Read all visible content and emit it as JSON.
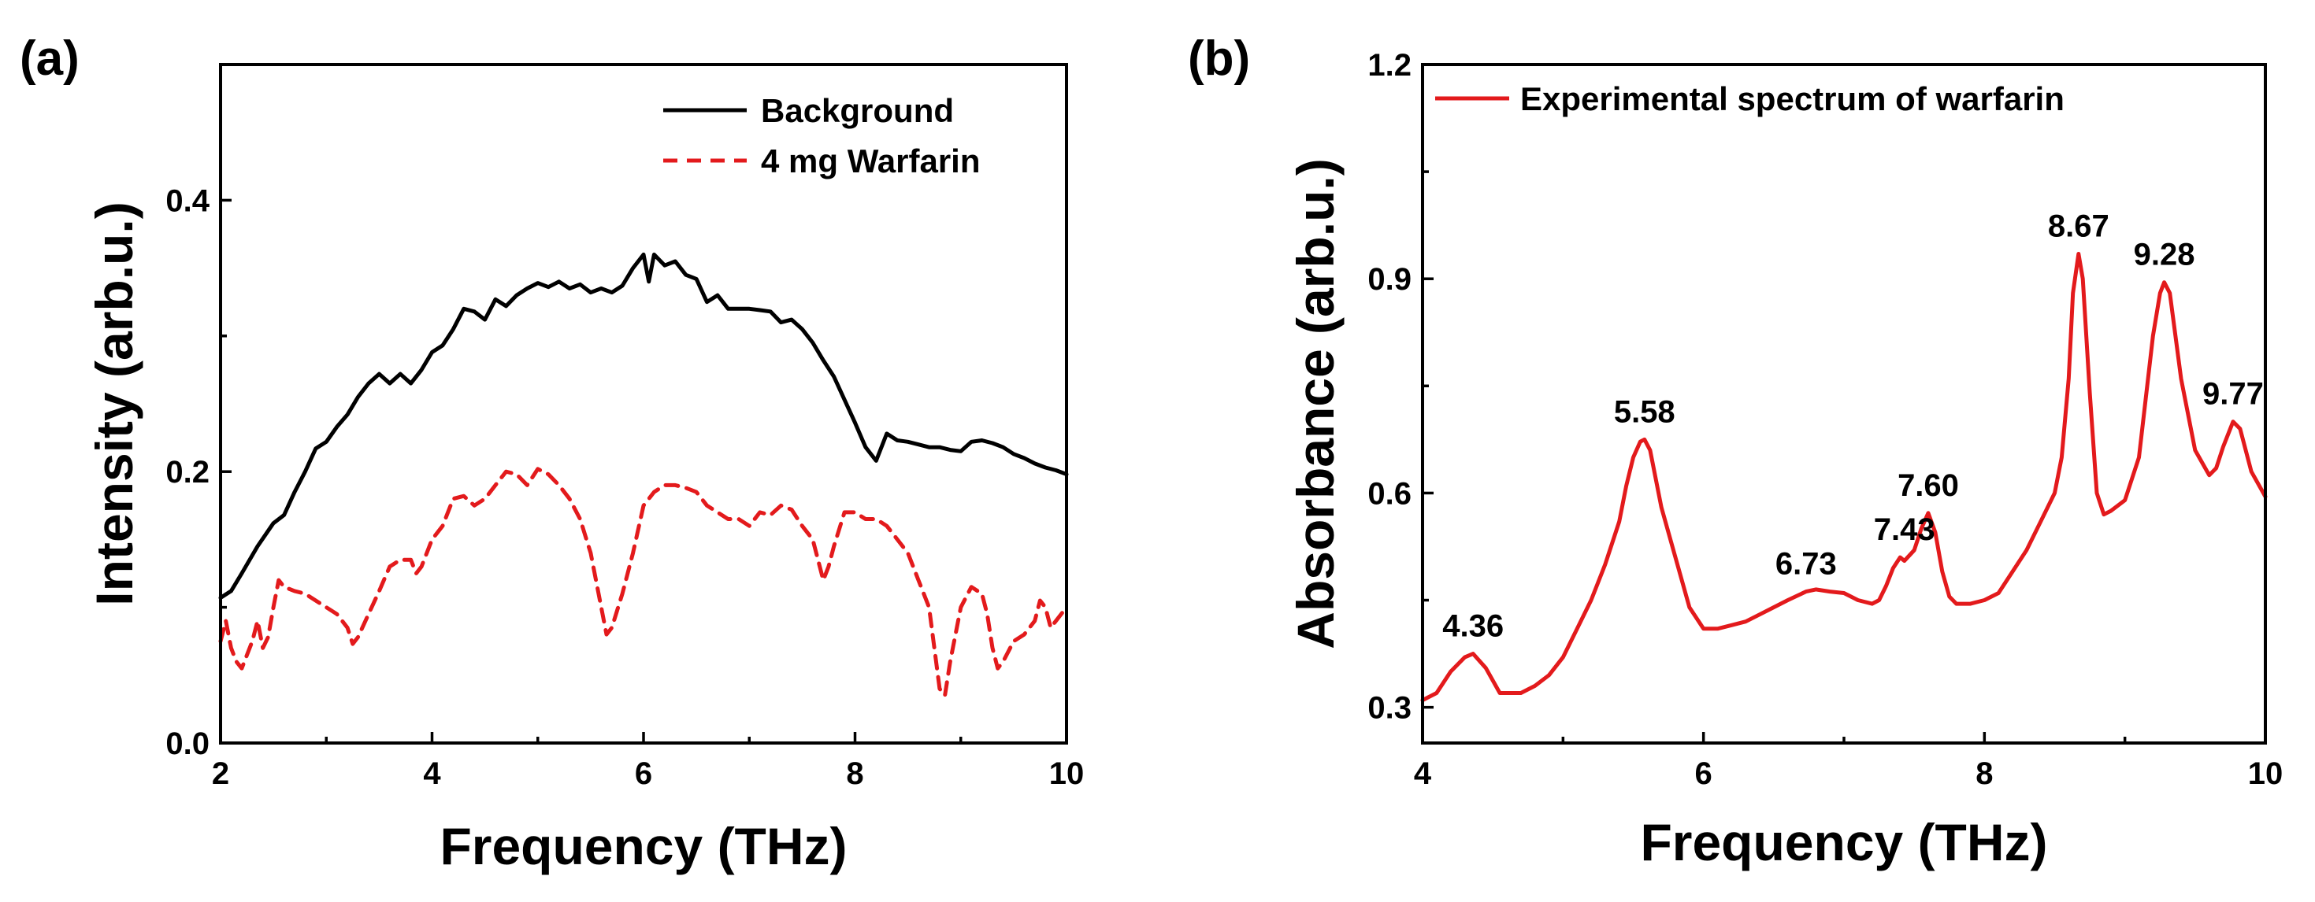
{
  "chart_data": [
    {
      "panel_label": "(a)",
      "type": "line",
      "title": "",
      "xlabel": "Frequency (THz)",
      "ylabel": "Intensity (arb.u.)",
      "xlim": [
        2,
        10
      ],
      "ylim": [
        0.0,
        0.5
      ],
      "xticks": [
        "2",
        "4",
        "6",
        "8",
        "10"
      ],
      "yticks": [
        "0.0",
        "0.2",
        "0.4"
      ],
      "legend_position": "top-right",
      "series": [
        {
          "name": "Background",
          "color": "#000000",
          "style": "solid",
          "x": [
            2.0,
            2.1,
            2.2,
            2.35,
            2.5,
            2.6,
            2.7,
            2.8,
            2.9,
            3.0,
            3.1,
            3.2,
            3.3,
            3.4,
            3.5,
            3.6,
            3.7,
            3.8,
            3.9,
            4.0,
            4.1,
            4.2,
            4.3,
            4.4,
            4.5,
            4.6,
            4.7,
            4.8,
            4.9,
            5.0,
            5.1,
            5.2,
            5.3,
            5.4,
            5.5,
            5.6,
            5.7,
            5.8,
            5.9,
            6.0,
            6.05,
            6.1,
            6.2,
            6.3,
            6.4,
            6.5,
            6.6,
            6.7,
            6.8,
            6.9,
            7.0,
            7.1,
            7.2,
            7.3,
            7.4,
            7.5,
            7.6,
            7.7,
            7.8,
            7.9,
            8.0,
            8.1,
            8.2,
            8.3,
            8.4,
            8.5,
            8.6,
            8.7,
            8.8,
            8.9,
            9.0,
            9.1,
            9.2,
            9.3,
            9.4,
            9.5,
            9.6,
            9.7,
            9.8,
            9.9,
            10.0
          ],
          "y": [
            0.107,
            0.112,
            0.125,
            0.145,
            0.162,
            0.168,
            0.185,
            0.2,
            0.217,
            0.222,
            0.233,
            0.242,
            0.255,
            0.265,
            0.272,
            0.265,
            0.272,
            0.265,
            0.275,
            0.288,
            0.293,
            0.305,
            0.32,
            0.318,
            0.312,
            0.327,
            0.322,
            0.33,
            0.335,
            0.339,
            0.336,
            0.34,
            0.335,
            0.338,
            0.332,
            0.335,
            0.332,
            0.337,
            0.35,
            0.36,
            0.34,
            0.36,
            0.352,
            0.355,
            0.345,
            0.342,
            0.325,
            0.33,
            0.32,
            0.32,
            0.32,
            0.319,
            0.318,
            0.31,
            0.312,
            0.305,
            0.295,
            0.282,
            0.27,
            0.253,
            0.236,
            0.218,
            0.208,
            0.228,
            0.223,
            0.222,
            0.22,
            0.218,
            0.218,
            0.216,
            0.215,
            0.222,
            0.223,
            0.221,
            0.218,
            0.213,
            0.21,
            0.206,
            0.203,
            0.201,
            0.198
          ]
        },
        {
          "name": "4 mg Warfarin",
          "color": "#e31a1c",
          "style": "dashed",
          "x": [
            2.0,
            2.05,
            2.1,
            2.15,
            2.2,
            2.3,
            2.35,
            2.4,
            2.45,
            2.5,
            2.55,
            2.6,
            2.7,
            2.8,
            2.9,
            3.0,
            3.1,
            3.2,
            3.25,
            3.3,
            3.4,
            3.5,
            3.6,
            3.7,
            3.8,
            3.85,
            3.9,
            4.0,
            4.1,
            4.2,
            4.3,
            4.4,
            4.5,
            4.6,
            4.7,
            4.8,
            4.9,
            5.0,
            5.1,
            5.2,
            5.3,
            5.4,
            5.5,
            5.6,
            5.65,
            5.7,
            5.8,
            5.9,
            6.0,
            6.1,
            6.2,
            6.3,
            6.4,
            6.5,
            6.6,
            6.7,
            6.8,
            6.9,
            7.0,
            7.1,
            7.2,
            7.3,
            7.4,
            7.5,
            7.6,
            7.65,
            7.7,
            7.75,
            7.8,
            7.9,
            8.0,
            8.1,
            8.2,
            8.3,
            8.4,
            8.5,
            8.6,
            8.7,
            8.75,
            8.8,
            8.85,
            8.9,
            9.0,
            9.1,
            9.2,
            9.25,
            9.3,
            9.35,
            9.4,
            9.5,
            9.6,
            9.7,
            9.75,
            9.8,
            9.85,
            9.9,
            10.0
          ],
          "y": [
            0.075,
            0.09,
            0.07,
            0.06,
            0.055,
            0.075,
            0.09,
            0.07,
            0.078,
            0.1,
            0.12,
            0.115,
            0.112,
            0.11,
            0.105,
            0.1,
            0.095,
            0.085,
            0.073,
            0.078,
            0.095,
            0.112,
            0.13,
            0.135,
            0.135,
            0.125,
            0.13,
            0.15,
            0.16,
            0.18,
            0.182,
            0.175,
            0.18,
            0.19,
            0.2,
            0.198,
            0.19,
            0.202,
            0.198,
            0.19,
            0.18,
            0.165,
            0.14,
            0.1,
            0.08,
            0.085,
            0.11,
            0.14,
            0.175,
            0.185,
            0.19,
            0.19,
            0.188,
            0.185,
            0.175,
            0.17,
            0.165,
            0.165,
            0.16,
            0.17,
            0.168,
            0.175,
            0.172,
            0.16,
            0.15,
            0.135,
            0.12,
            0.13,
            0.145,
            0.17,
            0.17,
            0.165,
            0.165,
            0.16,
            0.15,
            0.14,
            0.12,
            0.1,
            0.07,
            0.04,
            0.035,
            0.06,
            0.1,
            0.115,
            0.11,
            0.095,
            0.07,
            0.055,
            0.06,
            0.075,
            0.08,
            0.09,
            0.105,
            0.1,
            0.085,
            0.09,
            0.1
          ]
        }
      ]
    },
    {
      "panel_label": "(b)",
      "type": "line",
      "title": "",
      "xlabel": "Frequency (THz)",
      "ylabel": "Absorbance (arb.u.)",
      "xlim": [
        4,
        10
      ],
      "ylim": [
        0.25,
        1.2
      ],
      "xticks": [
        "4",
        "6",
        "8",
        "10"
      ],
      "yticks": [
        "0.3",
        "0.6",
        "0.9",
        "1.2"
      ],
      "legend_position": "top-left",
      "series": [
        {
          "name": "Experimental spectrum of warfarin",
          "color": "#e31a1c",
          "style": "solid",
          "x": [
            4.0,
            4.1,
            4.2,
            4.3,
            4.36,
            4.45,
            4.55,
            4.6,
            4.7,
            4.8,
            4.9,
            5.0,
            5.1,
            5.2,
            5.3,
            5.4,
            5.45,
            5.5,
            5.55,
            5.58,
            5.62,
            5.7,
            5.8,
            5.9,
            6.0,
            6.1,
            6.2,
            6.3,
            6.4,
            6.5,
            6.6,
            6.73,
            6.8,
            6.9,
            7.0,
            7.1,
            7.2,
            7.25,
            7.3,
            7.35,
            7.4,
            7.43,
            7.5,
            7.55,
            7.6,
            7.65,
            7.7,
            7.75,
            7.8,
            7.9,
            8.0,
            8.1,
            8.2,
            8.3,
            8.4,
            8.5,
            8.55,
            8.6,
            8.63,
            8.67,
            8.7,
            8.75,
            8.8,
            8.85,
            8.9,
            9.0,
            9.1,
            9.2,
            9.25,
            9.28,
            9.32,
            9.4,
            9.5,
            9.6,
            9.65,
            9.7,
            9.77,
            9.82,
            9.9,
            10.0
          ],
          "y": [
            0.31,
            0.32,
            0.35,
            0.37,
            0.375,
            0.355,
            0.32,
            0.32,
            0.32,
            0.33,
            0.345,
            0.37,
            0.41,
            0.45,
            0.5,
            0.56,
            0.61,
            0.65,
            0.672,
            0.675,
            0.66,
            0.58,
            0.51,
            0.44,
            0.41,
            0.41,
            0.415,
            0.42,
            0.43,
            0.44,
            0.45,
            0.462,
            0.465,
            0.462,
            0.46,
            0.45,
            0.445,
            0.45,
            0.47,
            0.495,
            0.51,
            0.505,
            0.52,
            0.55,
            0.572,
            0.545,
            0.49,
            0.455,
            0.445,
            0.445,
            0.45,
            0.46,
            0.49,
            0.52,
            0.56,
            0.6,
            0.65,
            0.76,
            0.88,
            0.935,
            0.9,
            0.74,
            0.6,
            0.57,
            0.575,
            0.59,
            0.65,
            0.82,
            0.88,
            0.895,
            0.88,
            0.76,
            0.66,
            0.625,
            0.635,
            0.665,
            0.7,
            0.69,
            0.63,
            0.595
          ]
        }
      ],
      "annotations": [
        {
          "text": "4.36",
          "x": 4.36,
          "y": 0.375
        },
        {
          "text": "5.58",
          "x": 5.58,
          "y": 0.675
        },
        {
          "text": "6.73",
          "x": 6.73,
          "y": 0.462
        },
        {
          "text": "7.43",
          "x": 7.43,
          "y": 0.51
        },
        {
          "text": "7.60",
          "x": 7.6,
          "y": 0.572
        },
        {
          "text": "8.67",
          "x": 8.67,
          "y": 0.935
        },
        {
          "text": "9.28",
          "x": 9.28,
          "y": 0.895
        },
        {
          "text": "9.77",
          "x": 9.77,
          "y": 0.7
        }
      ]
    }
  ]
}
